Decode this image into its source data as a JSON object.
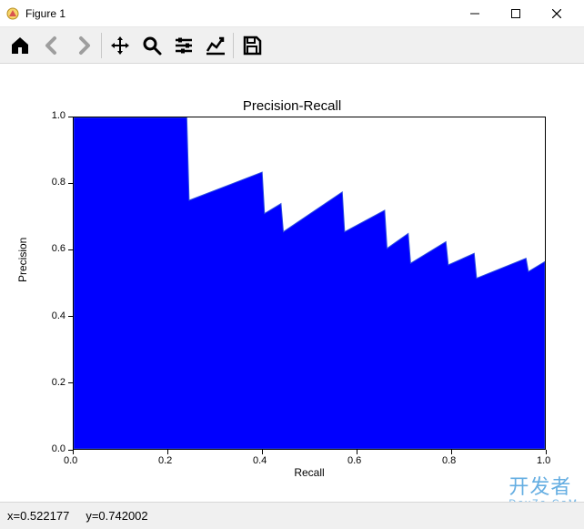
{
  "window": {
    "title": "Figure 1"
  },
  "toolbar": {
    "icons": [
      "home",
      "back",
      "forward",
      "pan",
      "zoom",
      "configure",
      "axes",
      "save"
    ]
  },
  "chart": {
    "type": "area",
    "title": "Precision-Recall",
    "xlabel": "Recall",
    "ylabel": "Precision",
    "title_fontsize": 15,
    "label_fontsize": 12,
    "tick_fontsize": 11,
    "xlim": [
      0.0,
      1.0
    ],
    "ylim": [
      0.0,
      1.0
    ],
    "xtick_step": 0.2,
    "ytick_step": 0.2,
    "xticks": [
      "0.0",
      "0.2",
      "0.4",
      "0.6",
      "0.8",
      "1.0"
    ],
    "yticks": [
      "0.0",
      "0.2",
      "0.4",
      "0.6",
      "0.8",
      "1.0"
    ],
    "fill_color": "#0000ff",
    "line_color": "#2d4fe0",
    "background_color": "#ffffff",
    "border_color": "#000000",
    "series": {
      "x": [
        0.0,
        0.24,
        0.245,
        0.4,
        0.405,
        0.44,
        0.445,
        0.57,
        0.575,
        0.66,
        0.665,
        0.71,
        0.715,
        0.79,
        0.795,
        0.85,
        0.855,
        0.96,
        0.965,
        1.0
      ],
      "y": [
        1.0,
        1.0,
        0.75,
        0.835,
        0.71,
        0.74,
        0.655,
        0.775,
        0.655,
        0.72,
        0.605,
        0.65,
        0.56,
        0.625,
        0.555,
        0.59,
        0.515,
        0.575,
        0.535,
        0.565
      ]
    }
  },
  "status": {
    "x_label": "x=0.522177",
    "y_label": "y=0.742002"
  },
  "watermark": {
    "main": "开发者",
    "sub": "DevZe.CoM"
  }
}
